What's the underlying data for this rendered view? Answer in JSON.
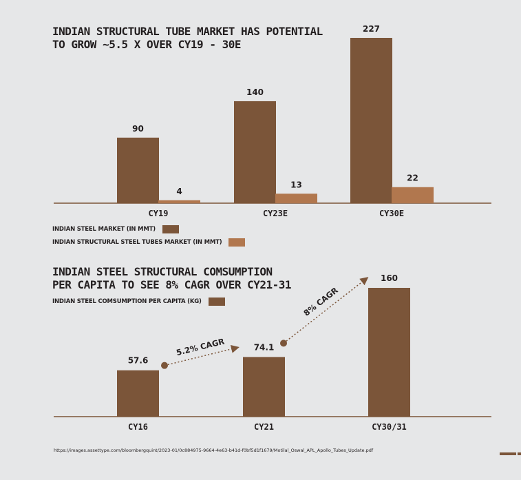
{
  "colors": {
    "steel": "#7b5539",
    "tubes": "#b1774e",
    "axis": "#7b5539",
    "text": "#231f20"
  },
  "chart_data": [
    {
      "type": "bar",
      "title": "INDIAN STRUCTURAL TUBE MARKET HAS POTENTIAL\nTO GROW ~5.5 X OVER CY19 - 30E",
      "categories": [
        "CY19",
        "CY23E",
        "CY30E"
      ],
      "series": [
        {
          "name": "INDIAN STEEL MARKET (IN MMT)",
          "values": [
            90,
            140,
            227
          ],
          "color": "#7b5539"
        },
        {
          "name": "INDIAN STRUCTURAL STEEL TUBES MARKET (IN MMT)",
          "values": [
            4,
            13,
            22
          ],
          "color": "#b1774e"
        }
      ],
      "value_labels": [
        [
          "90",
          "140",
          "227"
        ],
        [
          "4",
          "13",
          "22"
        ]
      ],
      "ylim": [
        0,
        227
      ],
      "grid": false,
      "legend_placement": "bottom-left"
    },
    {
      "type": "bar",
      "title": "INDIAN STEEL STRUCTURAL COMSUMPTION\nPER CAPITA TO SEE 8% CAGR OVER CY21-31",
      "categories": [
        "CY16",
        "CY21",
        "CY30/31"
      ],
      "series": [
        {
          "name": "INDIAN STEEL COMSUMPTION PER CAPITA (KG)",
          "values": [
            57.6,
            74.1,
            160
          ],
          "color": "#7b5539"
        }
      ],
      "value_labels": [
        "57.6",
        "74.1",
        "160"
      ],
      "annotations": [
        "5.2% CAGR",
        "8% CAGR"
      ],
      "ylim": [
        0,
        160
      ],
      "grid": false,
      "legend_placement": "top-left"
    }
  ],
  "source": "https://images.assettype.com/bloombergquint/2023-01/0c884975-9664-4e63-b41d-f0bf5d1f1679/Motilal_Oswal_APL_Apollo_Tubes_Update.pdf"
}
